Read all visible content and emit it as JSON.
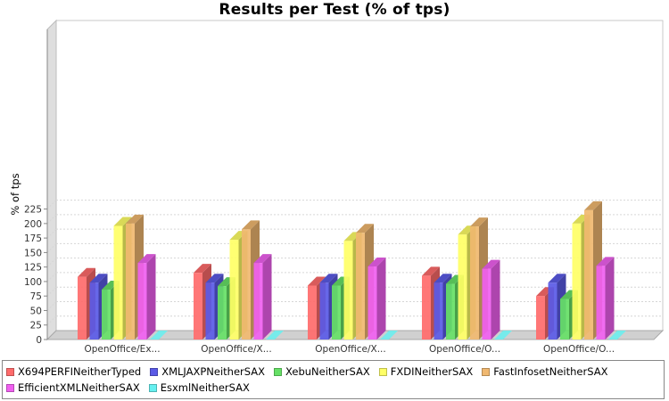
{
  "chart_data": {
    "type": "bar",
    "title": "Results per Test (% of tps)",
    "ylabel": "% of tps",
    "xlabel": "",
    "ylim": [
      0,
      225
    ],
    "yticks": [
      0,
      25,
      50,
      75,
      100,
      125,
      150,
      175,
      200,
      225
    ],
    "grid": true,
    "legend_position": "bottom",
    "categories": [
      "OpenOffice/Ex...",
      "OpenOffice/X...",
      "OpenOffice/X...",
      "OpenOffice/O...",
      "OpenOffice/O..."
    ],
    "series": [
      {
        "name": "X694PERFINeitherTyped",
        "color": "#ff6b6b",
        "values": [
          108,
          115,
          93,
          110,
          75
        ]
      },
      {
        "name": "XMLJAXPNeitherSAX",
        "color": "#5a5ae6",
        "values": [
          98,
          98,
          98,
          98,
          98
        ]
      },
      {
        "name": "XebuNeitherSAX",
        "color": "#66e066",
        "values": [
          86,
          92,
          93,
          96,
          70
        ]
      },
      {
        "name": "FXDINeitherSAX",
        "color": "#ffff66",
        "values": [
          196,
          172,
          170,
          181,
          200
        ]
      },
      {
        "name": "FastInfosetNeitherSAX",
        "color": "#f0b870",
        "values": [
          200,
          190,
          184,
          195,
          223
        ]
      },
      {
        "name": "EfficientXMLNeitherSAX",
        "color": "#f060f0",
        "values": [
          132,
          132,
          126,
          122,
          127
        ]
      },
      {
        "name": "EsxmlNeitherSAX",
        "color": "#66f0f0",
        "values": [
          0,
          0,
          0,
          0,
          0
        ]
      }
    ]
  }
}
